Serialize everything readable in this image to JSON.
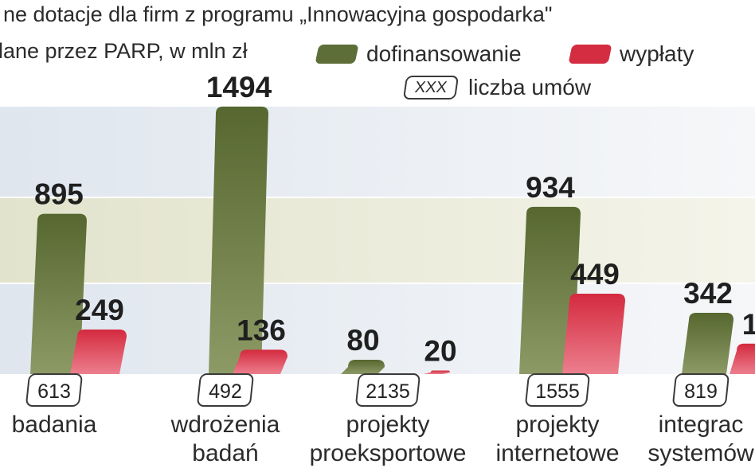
{
  "title": "ne dotacje dla firm z programu „Innowacyjna gospodarka\"",
  "subtitle": "lane przez PARP, w mln zł",
  "legend": {
    "dofinansowanie": "dofinansowanie",
    "wyplaty": "wypłaty",
    "box_sample": "XXX",
    "liczba_umow": "liczba umów"
  },
  "colors": {
    "dofinansowanie": "#5d6e38",
    "wyplaty": "#d42d42",
    "band_blue": "#dde4ec",
    "band_olive": "#e6e6d2"
  },
  "chart_data": {
    "type": "bar",
    "categories": [
      [
        "badania"
      ],
      [
        "wdrożenia",
        "badań"
      ],
      [
        "projekty",
        "proeksportowe"
      ],
      [
        "projekty",
        "internetowe"
      ],
      [
        "integrac",
        "systemów"
      ]
    ],
    "series": [
      {
        "name": "dofinansowanie",
        "values": [
          895,
          1494,
          80,
          934,
          342
        ]
      },
      {
        "name": "wypłaty",
        "values": [
          249,
          136,
          20,
          449,
          null
        ]
      }
    ],
    "value_labels": {
      "dofinansowanie": [
        "895",
        "1494",
        "80",
        "934",
        "342"
      ],
      "wyplaty": [
        "249",
        "136",
        "20",
        "449",
        "1"
      ]
    },
    "liczba_umow": [
      "613",
      "492",
      "2135",
      "1555",
      "819"
    ],
    "ylim": [
      0,
      1600
    ]
  }
}
